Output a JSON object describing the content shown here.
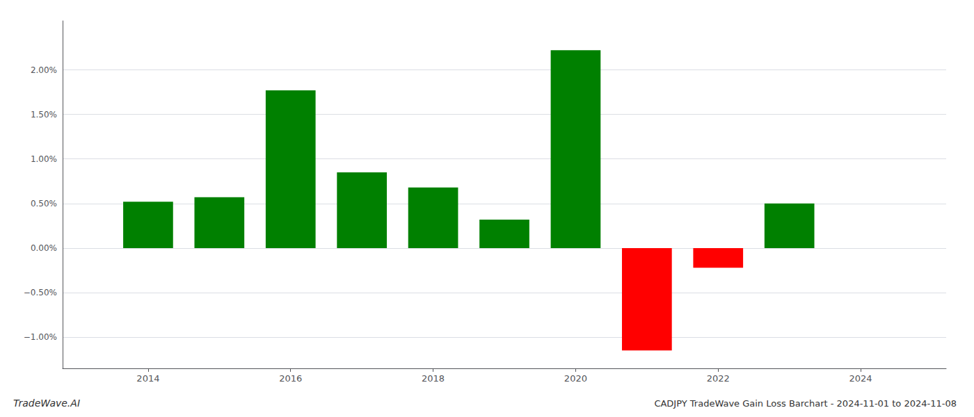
{
  "chart_data": {
    "type": "bar",
    "title": "CADJPY TradeWave Gain Loss Barchart - 2024-11-01 to 2024-11-08",
    "annotations": [
      "TradeWave.AI"
    ],
    "x": [
      2014,
      2015,
      2016,
      2017,
      2018,
      2019,
      2020,
      2021,
      2022,
      2023
    ],
    "values": [
      0.52,
      0.57,
      1.77,
      0.85,
      0.68,
      0.32,
      2.22,
      -1.15,
      -0.22,
      0.5
    ],
    "colors": [
      "#008000",
      "#008000",
      "#008000",
      "#008000",
      "#008000",
      "#008000",
      "#008000",
      "#ff0000",
      "#ff0000",
      "#008000"
    ],
    "xlim": [
      2012.8,
      2025.2
    ],
    "xticks": [
      2014,
      2016,
      2018,
      2020,
      2022,
      2024
    ],
    "ylim": [
      -1.35,
      2.55
    ],
    "yticks": [
      {
        "value": -1.0,
        "label": "−1.00%"
      },
      {
        "value": -0.5,
        "label": "−0.50%"
      },
      {
        "value": 0.0,
        "label": "0.00%"
      },
      {
        "value": 0.5,
        "label": "0.50%"
      },
      {
        "value": 1.0,
        "label": "1.00%"
      },
      {
        "value": 1.5,
        "label": "1.50%"
      },
      {
        "value": 2.0,
        "label": "2.00%"
      }
    ],
    "grid": true
  }
}
